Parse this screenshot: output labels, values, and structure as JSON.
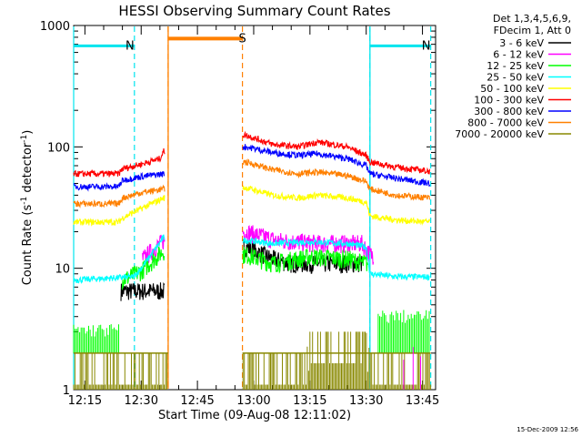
{
  "chart_data": {
    "type": "line",
    "title": "HESSI Observing Summary Count Rates",
    "xlabel": "Start Time (09-Aug-08 12:11:02)",
    "ylabel": "Count Rate (s",
    "ylabel_sup": "-1",
    "ylabel_mid": " detector",
    "ylabel_end": ")",
    "footer": "15-Dec-2009 12:56",
    "yscale": "log",
    "ylim": [
      1,
      1000
    ],
    "y_ticks": [
      "1",
      "10",
      "100",
      "1000"
    ],
    "xlim_minutes": [
      12.0,
      108.5
    ],
    "x_ticks": [
      {
        "label": "12:15",
        "min": 15
      },
      {
        "label": "12:30",
        "min": 30
      },
      {
        "label": "12:45",
        "min": 45
      },
      {
        "label": "13:00",
        "min": 60
      },
      {
        "label": "13:15",
        "min": 75
      },
      {
        "label": "13:30",
        "min": 90
      },
      {
        "label": "13:45",
        "min": 105
      }
    ],
    "legend_header": [
      "Det 1,3,4,5,6,9,",
      "FDecim 1, Att 0"
    ],
    "legend_placement": "right",
    "flags": [
      {
        "label": "N",
        "color": "#00e5ee",
        "start_min": 12.0,
        "end_min": 28.2,
        "level": 680
      },
      {
        "label": "N",
        "color": "#00e5ee",
        "start_min": 91.0,
        "end_min": 107.2,
        "level": 680
      },
      {
        "label": "S",
        "color": "#ff8000",
        "start_min": 37.2,
        "end_min": 57.0,
        "level": 780
      }
    ],
    "segments": [
      [
        12.0,
        37.2
      ],
      [
        57.0,
        108.5
      ]
    ],
    "series": [
      {
        "name": "3 - 6 keV",
        "color": "#000000",
        "points": [
          [
            24,
            0
          ],
          [
            25,
            6.5
          ],
          [
            36,
            6.5
          ],
          [
            36.5,
            0
          ],
          [
            58,
            15
          ],
          [
            65,
            12
          ],
          [
            70,
            11
          ],
          [
            80,
            11
          ],
          [
            88,
            11
          ],
          [
            90,
            0
          ]
        ]
      },
      {
        "name": "6 - 12 keV",
        "color": "#ff00ff",
        "points": [
          [
            30,
            0
          ],
          [
            30.5,
            12
          ],
          [
            36,
            17
          ],
          [
            36.5,
            0
          ],
          [
            58,
            20
          ],
          [
            66,
            17
          ],
          [
            78,
            16
          ],
          [
            89,
            16
          ],
          [
            91,
            13
          ],
          [
            93,
            0
          ]
        ]
      },
      {
        "name": "12 - 25 keV",
        "color": "#00ff00",
        "points": [
          [
            24.5,
            0
          ],
          [
            25,
            8
          ],
          [
            30,
            9.5
          ],
          [
            36,
            14
          ],
          [
            36.5,
            0
          ],
          [
            58,
            13
          ],
          [
            65,
            11
          ],
          [
            75,
            12.5
          ],
          [
            85,
            12
          ],
          [
            90,
            11
          ],
          [
            91,
            0
          ]
        ]
      },
      {
        "name": "25 - 50 keV",
        "color": "#00ffff",
        "points": [
          [
            12,
            8
          ],
          [
            28,
            8.5
          ],
          [
            30,
            10
          ],
          [
            36,
            18
          ],
          [
            36.5,
            0
          ],
          [
            58,
            17
          ],
          [
            65,
            16
          ],
          [
            75,
            16.5
          ],
          [
            85,
            16
          ],
          [
            90,
            15
          ],
          [
            91,
            9
          ],
          [
            98,
            8.5
          ],
          [
            107,
            8.5
          ]
        ]
      },
      {
        "name": "50 - 100 keV",
        "color": "#ffff00",
        "points": [
          [
            12,
            24
          ],
          [
            24,
            24
          ],
          [
            25,
            26
          ],
          [
            30,
            31
          ],
          [
            36,
            38
          ],
          [
            36.5,
            0
          ],
          [
            58,
            46
          ],
          [
            65,
            40
          ],
          [
            72,
            38
          ],
          [
            77,
            40
          ],
          [
            85,
            38
          ],
          [
            90,
            35
          ],
          [
            91,
            27
          ],
          [
            98,
            25
          ],
          [
            107,
            24
          ]
        ]
      },
      {
        "name": "100 - 300 keV",
        "color": "#ff0000",
        "points": [
          [
            12,
            60
          ],
          [
            24,
            60
          ],
          [
            25,
            66
          ],
          [
            30,
            72
          ],
          [
            35,
            80
          ],
          [
            36,
            92
          ],
          [
            36.5,
            0
          ],
          [
            58,
            125
          ],
          [
            65,
            105
          ],
          [
            72,
            100
          ],
          [
            77,
            110
          ],
          [
            85,
            100
          ],
          [
            90,
            85
          ],
          [
            91,
            75
          ],
          [
            98,
            68
          ],
          [
            107,
            63
          ]
        ]
      },
      {
        "name": "300 - 800 keV",
        "color": "#0000ff",
        "points": [
          [
            12,
            47
          ],
          [
            24,
            47
          ],
          [
            25,
            53
          ],
          [
            30,
            57
          ],
          [
            36,
            60
          ],
          [
            36.5,
            0
          ],
          [
            58,
            100
          ],
          [
            65,
            90
          ],
          [
            72,
            85
          ],
          [
            77,
            88
          ],
          [
            85,
            80
          ],
          [
            90,
            70
          ],
          [
            91,
            60
          ],
          [
            98,
            55
          ],
          [
            107,
            50
          ]
        ]
      },
      {
        "name": "800 - 7000 keV",
        "color": "#ff8000",
        "points": [
          [
            12,
            34
          ],
          [
            24,
            34
          ],
          [
            25,
            38
          ],
          [
            30,
            42
          ],
          [
            36,
            45
          ],
          [
            36.5,
            0
          ],
          [
            58,
            75
          ],
          [
            65,
            65
          ],
          [
            72,
            60
          ],
          [
            77,
            62
          ],
          [
            85,
            58
          ],
          [
            90,
            52
          ],
          [
            91,
            45
          ],
          [
            98,
            40
          ],
          [
            107,
            38
          ]
        ]
      },
      {
        "name": "7000 - 20000 keV",
        "color": "#888800",
        "points": [
          [
            12,
            2
          ],
          [
            36,
            2
          ],
          [
            36.5,
            0
          ],
          [
            58,
            2
          ],
          [
            74,
            2
          ],
          [
            75,
            3
          ],
          [
            90,
            3
          ],
          [
            91,
            2
          ],
          [
            107,
            2
          ]
        ]
      }
    ],
    "green_low_band": [
      [
        12,
        2.7
      ],
      [
        24,
        2.7
      ],
      [
        93,
        3.5
      ],
      [
        107,
        3.5
      ]
    ]
  }
}
